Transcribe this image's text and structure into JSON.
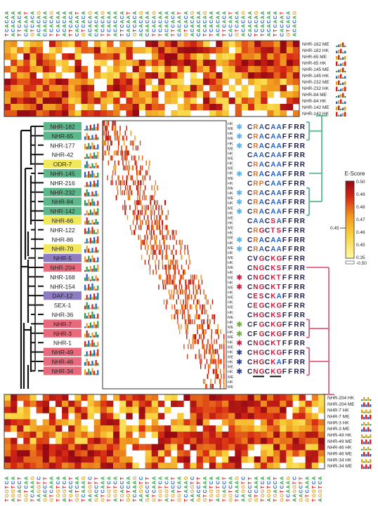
{
  "top_panel": {
    "row_labels": [
      "NHR-182 ME",
      "NHR-182 HK",
      "NHR-65 ME",
      "NHR-65 HK",
      "NHR-145 ME",
      "NHR-145 HK",
      "NHR-232 ME",
      "NHR-232 HK",
      "NHR-84 ME",
      "NHR-84 HK",
      "NHR-142 ME",
      "NHR-142 HK"
    ]
  },
  "bottom_panel": {
    "row_labels": [
      "NHR-204 HK",
      "NHR-204 ME",
      "NHR-7 HK",
      "NHR-7 ME",
      "NHR-3 HK",
      "NHR-3 ME",
      "NHR-49 HK",
      "NHR-49 ME",
      "NHR-46 HK",
      "NHR-46 ME",
      "NHR-34 HK",
      "NHR-34 ME"
    ]
  },
  "proteins": [
    {
      "name": "NHR-182",
      "group": "green",
      "seq": "CRACAAFFRR",
      "star": "blue"
    },
    {
      "name": "NHR-65",
      "group": "green",
      "seq": "CRACAAFFRR",
      "star": "blue"
    },
    {
      "name": "NHR-177",
      "group": "none",
      "seq": "CRACAAFFRR",
      "star": "blue"
    },
    {
      "name": "NHR-42",
      "group": "none",
      "seq": "CAACAAFFRR",
      "star": ""
    },
    {
      "name": "ODR-7",
      "group": "yellow",
      "seq": "CRACAAFFRR",
      "star": ""
    },
    {
      "name": "NHR-145",
      "group": "green",
      "seq": "CRACAAFFRR",
      "star": "blue"
    },
    {
      "name": "NHR-216",
      "group": "none",
      "seq": "CRPCAAFFRR",
      "star": ""
    },
    {
      "name": "NHR-232",
      "group": "green",
      "seq": "CRACAAFFRR",
      "star": "blue"
    },
    {
      "name": "NHR-84",
      "group": "green",
      "seq": "CRACAAFFRR",
      "star": "blue"
    },
    {
      "name": "NHR-142",
      "group": "green",
      "seq": "CRACAAFFRR",
      "star": "blue"
    },
    {
      "name": "NHR-66",
      "group": "yellow",
      "seq": "CAACSAFFRR",
      "star": ""
    },
    {
      "name": "NHR-122",
      "group": "none",
      "seq": "CRGCTSFFRR",
      "star": ""
    },
    {
      "name": "NHR-86",
      "group": "none",
      "seq": "CRACAAFFRR",
      "star": "blue"
    },
    {
      "name": "NHR-70",
      "group": "yellow",
      "seq": "CRACAAFFRR",
      "star": "blue"
    },
    {
      "name": "NHR-5",
      "group": "purple",
      "seq": "CVGCKGFFRR",
      "star": ""
    },
    {
      "name": "NHR-204",
      "group": "red",
      "seq": "CNGCKSFFRR",
      "star": ""
    },
    {
      "name": "NHR-168",
      "group": "none",
      "seq": "CNGCKTFFRR",
      "star": "red"
    },
    {
      "name": "NHR-154",
      "group": "none",
      "seq": "CNGCKTFFRR",
      "star": "red"
    },
    {
      "name": "DAF-12",
      "group": "purple",
      "seq": "CESCKAFFRR",
      "star": ""
    },
    {
      "name": "SEX-1",
      "group": "none",
      "seq": "CEGCKGFFRR",
      "star": ""
    },
    {
      "name": "NHR-36",
      "group": "none",
      "seq": "CHGCKSFFRR",
      "star": ""
    },
    {
      "name": "NHR-7",
      "group": "red",
      "seq": "CFGCKGFFRR",
      "star": "green"
    },
    {
      "name": "NHR-3",
      "group": "red",
      "seq": "CFGCKGFFRR",
      "star": "green"
    },
    {
      "name": "NHR-1",
      "group": "none",
      "seq": "CNGCKTFFRR",
      "star": "red"
    },
    {
      "name": "NHR-49",
      "group": "red",
      "seq": "CHGCKGFFRR",
      "star": "navy"
    },
    {
      "name": "NHR-46",
      "group": "red",
      "seq": "CHGCKAFFRR",
      "star": "navy"
    },
    {
      "name": "NHR-34",
      "group": "red",
      "seq": "CNGCKGFFRR",
      "star": "navy"
    }
  ],
  "colorbar": {
    "title": "E-Score",
    "ticks": [
      "0.50",
      "0.49",
      "0.48",
      "0.47",
      "0.46",
      "0.45",
      "0.35"
    ],
    "low_label": "-0.50",
    "threshold_label": "0.45"
  },
  "kmer_samples_top": [
    "TCACAA",
    "ACACAA",
    "TTCACA",
    "CACAAT",
    "GTCACA",
    "ACACAG",
    "CAACAA",
    "TCACAG"
  ],
  "kmer_samples_bottom": [
    "TGGTCA",
    "AGGTCA",
    "TGACCT",
    "GGTCAA",
    "TCAAAG",
    "AAGGTC",
    "GACCTT",
    "GTCAAA"
  ],
  "colors": {
    "green": "#5cb88a",
    "yellow": "#f2e85c",
    "purple": "#8e7cc3",
    "red": "#e86a7d",
    "teal_bracket": "#59b98b",
    "pink_bracket": "#e0607a"
  }
}
